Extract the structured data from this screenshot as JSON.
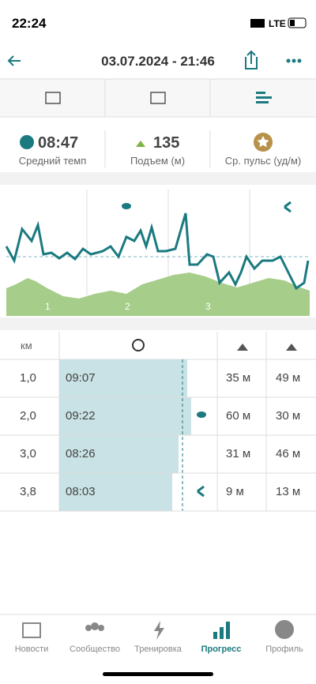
{
  "status": {
    "time": "22:24",
    "network": "LTE"
  },
  "header": {
    "title": "03.07.2024 - 21:46"
  },
  "stats": [
    {
      "value": "08:47",
      "label": "Средний темп"
    },
    {
      "value": "135",
      "label": "Подъем (м)"
    },
    {
      "label": "Ср. пульс (уд/м)"
    }
  ],
  "chart": {
    "segments": [
      "1",
      "2",
      "3"
    ]
  },
  "splits": {
    "header": "км",
    "rows": [
      [
        "1,0",
        "09:07",
        "35 м",
        "49 м"
      ],
      [
        "2,0",
        "09:22",
        "60 м",
        "30 м"
      ],
      [
        "3,0",
        "08:26",
        "31 м",
        "46 м"
      ],
      [
        "3,8",
        "08:03",
        "9 м",
        "13 м"
      ]
    ]
  },
  "nav": [
    "Новости",
    "Сообщество",
    "Тренировка",
    "Прогресс",
    "Профиль"
  ]
}
